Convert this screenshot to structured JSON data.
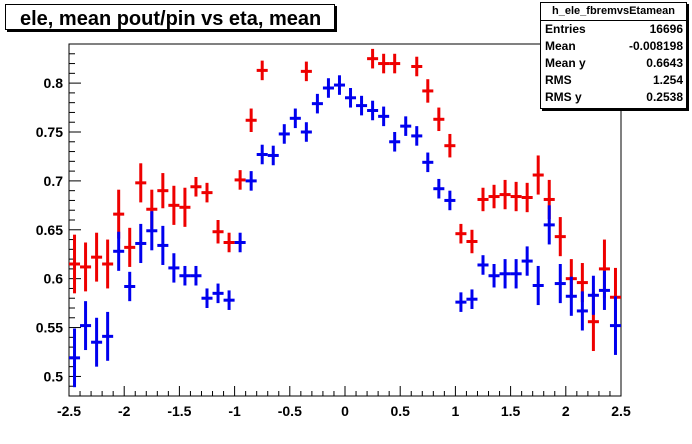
{
  "title": "ele, mean pout/pin vs eta, mean",
  "stats": {
    "name": "h_ele_fbremvsEtamean",
    "rows": [
      {
        "key": "Entries",
        "value": "16696"
      },
      {
        "key": "Mean",
        "value": "-0.008198"
      },
      {
        "key": "Mean y",
        "value": "0.6643"
      },
      {
        "key": "RMS",
        "value": "1.254"
      },
      {
        "key": "RMS y",
        "value": "0.2538"
      }
    ]
  },
  "chart_data": {
    "type": "scatter",
    "title": "ele, mean pout/pin vs eta, mean",
    "xlim": [
      -2.5,
      2.5
    ],
    "ylim": [
      0.48,
      0.84
    ],
    "xticks": [
      "-2.5",
      "-2",
      "-1.5",
      "-1",
      "-0.5",
      "0",
      "0.5",
      "1",
      "1.5",
      "2",
      "2.5"
    ],
    "yticks": [
      "0.5",
      "0.55",
      "0.6",
      "0.65",
      "0.7",
      "0.75",
      "0.8"
    ],
    "xbin_halfwidth": 0.05,
    "series": [
      {
        "color": "#ee0000",
        "points": [
          {
            "x": -2.45,
            "y": 0.615,
            "err": 0.03
          },
          {
            "x": -2.35,
            "y": 0.612,
            "err": 0.025
          },
          {
            "x": -2.25,
            "y": 0.622,
            "err": 0.025
          },
          {
            "x": -2.15,
            "y": 0.615,
            "err": 0.025
          },
          {
            "x": -2.05,
            "y": 0.666,
            "err": 0.025
          },
          {
            "x": -1.95,
            "y": 0.632,
            "err": 0.02
          },
          {
            "x": -1.85,
            "y": 0.698,
            "err": 0.02
          },
          {
            "x": -1.75,
            "y": 0.671,
            "err": 0.02
          },
          {
            "x": -1.65,
            "y": 0.69,
            "err": 0.018
          },
          {
            "x": -1.55,
            "y": 0.675,
            "err": 0.02
          },
          {
            "x": -1.45,
            "y": 0.673,
            "err": 0.02
          },
          {
            "x": -1.35,
            "y": 0.694,
            "err": 0.01
          },
          {
            "x": -1.25,
            "y": 0.688,
            "err": 0.01
          },
          {
            "x": -1.15,
            "y": 0.648,
            "err": 0.012
          },
          {
            "x": -1.05,
            "y": 0.637,
            "err": 0.01
          },
          {
            "x": -0.95,
            "y": 0.701,
            "err": 0.01
          },
          {
            "x": -0.85,
            "y": 0.762,
            "err": 0.012
          },
          {
            "x": -0.75,
            "y": 0.813,
            "err": 0.01
          },
          {
            "x": -0.35,
            "y": 0.812,
            "err": 0.01
          },
          {
            "x": 0.25,
            "y": 0.825,
            "err": 0.01
          },
          {
            "x": 0.35,
            "y": 0.82,
            "err": 0.01
          },
          {
            "x": 0.45,
            "y": 0.82,
            "err": 0.01
          },
          {
            "x": 0.65,
            "y": 0.817,
            "err": 0.01
          },
          {
            "x": 0.75,
            "y": 0.792,
            "err": 0.012
          },
          {
            "x": 0.85,
            "y": 0.763,
            "err": 0.012
          },
          {
            "x": 0.95,
            "y": 0.736,
            "err": 0.012
          },
          {
            "x": 1.05,
            "y": 0.646,
            "err": 0.01
          },
          {
            "x": 1.15,
            "y": 0.638,
            "err": 0.012
          },
          {
            "x": 1.25,
            "y": 0.681,
            "err": 0.012
          },
          {
            "x": 1.35,
            "y": 0.684,
            "err": 0.012
          },
          {
            "x": 1.45,
            "y": 0.686,
            "err": 0.015
          },
          {
            "x": 1.55,
            "y": 0.684,
            "err": 0.015
          },
          {
            "x": 1.65,
            "y": 0.683,
            "err": 0.015
          },
          {
            "x": 1.75,
            "y": 0.706,
            "err": 0.02
          },
          {
            "x": 1.85,
            "y": 0.681,
            "err": 0.02
          },
          {
            "x": 1.95,
            "y": 0.643,
            "err": 0.02
          },
          {
            "x": 2.05,
            "y": 0.6,
            "err": 0.02
          },
          {
            "x": 2.15,
            "y": 0.596,
            "err": 0.02
          },
          {
            "x": 2.25,
            "y": 0.556,
            "err": 0.03
          },
          {
            "x": 2.35,
            "y": 0.61,
            "err": 0.03
          },
          {
            "x": 2.45,
            "y": 0.581,
            "err": 0.03
          }
        ]
      },
      {
        "color": "#0000ee",
        "points": [
          {
            "x": -2.45,
            "y": 0.519,
            "err": 0.03
          },
          {
            "x": -2.35,
            "y": 0.552,
            "err": 0.025
          },
          {
            "x": -2.25,
            "y": 0.535,
            "err": 0.025
          },
          {
            "x": -2.15,
            "y": 0.541,
            "err": 0.025
          },
          {
            "x": -2.05,
            "y": 0.628,
            "err": 0.02
          },
          {
            "x": -1.95,
            "y": 0.592,
            "err": 0.015
          },
          {
            "x": -1.85,
            "y": 0.636,
            "err": 0.02
          },
          {
            "x": -1.75,
            "y": 0.649,
            "err": 0.02
          },
          {
            "x": -1.65,
            "y": 0.634,
            "err": 0.02
          },
          {
            "x": -1.55,
            "y": 0.611,
            "err": 0.015
          },
          {
            "x": -1.45,
            "y": 0.603,
            "err": 0.01
          },
          {
            "x": -1.35,
            "y": 0.603,
            "err": 0.01
          },
          {
            "x": -1.25,
            "y": 0.58,
            "err": 0.01
          },
          {
            "x": -1.15,
            "y": 0.585,
            "err": 0.01
          },
          {
            "x": -1.05,
            "y": 0.578,
            "err": 0.01
          },
          {
            "x": -0.95,
            "y": 0.637,
            "err": 0.01
          },
          {
            "x": -0.85,
            "y": 0.7,
            "err": 0.01
          },
          {
            "x": -0.75,
            "y": 0.727,
            "err": 0.01
          },
          {
            "x": -0.65,
            "y": 0.726,
            "err": 0.01
          },
          {
            "x": -0.55,
            "y": 0.748,
            "err": 0.01
          },
          {
            "x": -0.45,
            "y": 0.764,
            "err": 0.01
          },
          {
            "x": -0.35,
            "y": 0.75,
            "err": 0.01
          },
          {
            "x": -0.25,
            "y": 0.779,
            "err": 0.01
          },
          {
            "x": -0.15,
            "y": 0.795,
            "err": 0.01
          },
          {
            "x": -0.05,
            "y": 0.798,
            "err": 0.01
          },
          {
            "x": 0.05,
            "y": 0.785,
            "err": 0.01
          },
          {
            "x": 0.15,
            "y": 0.777,
            "err": 0.01
          },
          {
            "x": 0.25,
            "y": 0.772,
            "err": 0.01
          },
          {
            "x": 0.35,
            "y": 0.766,
            "err": 0.01
          },
          {
            "x": 0.45,
            "y": 0.74,
            "err": 0.01
          },
          {
            "x": 0.55,
            "y": 0.756,
            "err": 0.01
          },
          {
            "x": 0.65,
            "y": 0.746,
            "err": 0.01
          },
          {
            "x": 0.75,
            "y": 0.719,
            "err": 0.01
          },
          {
            "x": 0.85,
            "y": 0.692,
            "err": 0.01
          },
          {
            "x": 0.95,
            "y": 0.68,
            "err": 0.01
          },
          {
            "x": 1.05,
            "y": 0.576,
            "err": 0.01
          },
          {
            "x": 1.15,
            "y": 0.579,
            "err": 0.01
          },
          {
            "x": 1.25,
            "y": 0.614,
            "err": 0.01
          },
          {
            "x": 1.35,
            "y": 0.603,
            "err": 0.012
          },
          {
            "x": 1.45,
            "y": 0.605,
            "err": 0.015
          },
          {
            "x": 1.55,
            "y": 0.605,
            "err": 0.015
          },
          {
            "x": 1.65,
            "y": 0.618,
            "err": 0.015
          },
          {
            "x": 1.75,
            "y": 0.593,
            "err": 0.02
          },
          {
            "x": 1.85,
            "y": 0.655,
            "err": 0.02
          },
          {
            "x": 1.95,
            "y": 0.595,
            "err": 0.02
          },
          {
            "x": 2.05,
            "y": 0.582,
            "err": 0.02
          },
          {
            "x": 2.15,
            "y": 0.567,
            "err": 0.02
          },
          {
            "x": 2.25,
            "y": 0.583,
            "err": 0.02
          },
          {
            "x": 2.35,
            "y": 0.588,
            "err": 0.02
          },
          {
            "x": 2.45,
            "y": 0.552,
            "err": 0.03
          }
        ]
      }
    ]
  }
}
